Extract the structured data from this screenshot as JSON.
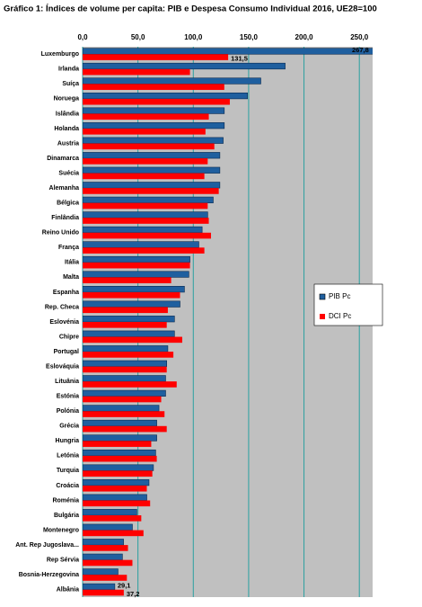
{
  "chart_data": {
    "type": "hbar",
    "title": "Gráfico 1: Índices de volume per capita: PIB e Despesa Consumo Individual 2016, UE28=100",
    "categories": [
      "Luxemburgo",
      "Irlanda",
      "Suíça",
      "Noruega",
      "Islândia",
      "Holanda",
      "Austria",
      "Dinamarca",
      "Suécia",
      "Alemanha",
      "Bélgica",
      "Finlândia",
      "Reino Unido",
      "França",
      "Itália",
      "Malta",
      "Espanha",
      "Rep. Checa",
      "Eslovénia",
      "Chipre",
      "Portugal",
      "Eslováquia",
      "Lituânia",
      "Estónia",
      "Polónia",
      "Grécia",
      "Hungria",
      "Letónia",
      "Turquia",
      "Croácia",
      "Roménia",
      "Bulgária",
      "Montenegro",
      "Ant. Rep Jugoslava...",
      "Rep Sérvia",
      "Bosnia-Herzegovina",
      "Albânia"
    ],
    "series": [
      {
        "name": "PIB Pc",
        "color": "#1f5f9f",
        "values": [
          267.8,
          183,
          161,
          149,
          128,
          128,
          127,
          124,
          124,
          124,
          118,
          113,
          108,
          105,
          97,
          96,
          92,
          88,
          83,
          83,
          77,
          76,
          75,
          75,
          69,
          67,
          67,
          66,
          64,
          60,
          58,
          49,
          45,
          37,
          36,
          32,
          29.1
        ],
        "value_labels": [
          "267,8",
          null,
          null,
          null,
          null,
          null,
          null,
          null,
          null,
          null,
          null,
          null,
          null,
          null,
          null,
          null,
          null,
          null,
          null,
          null,
          null,
          null,
          null,
          null,
          null,
          null,
          null,
          null,
          null,
          null,
          null,
          null,
          null,
          null,
          null,
          null,
          "29,1"
        ]
      },
      {
        "name": "DCI Pc",
        "color": "#ff0000",
        "values": [
          131.5,
          97,
          128,
          133,
          114,
          111,
          119,
          113,
          110,
          123,
          113,
          114,
          116,
          110,
          97,
          80,
          88,
          77,
          76,
          90,
          82,
          76,
          85,
          71,
          74,
          76,
          62,
          67,
          63,
          58,
          61,
          53,
          55,
          41,
          45,
          40,
          37.2
        ],
        "value_labels": [
          "131,5",
          null,
          null,
          null,
          null,
          null,
          null,
          null,
          null,
          null,
          null,
          null,
          null,
          null,
          null,
          null,
          null,
          null,
          null,
          null,
          null,
          null,
          null,
          null,
          null,
          null,
          null,
          null,
          null,
          null,
          null,
          null,
          null,
          null,
          null,
          null,
          "37,2"
        ]
      }
    ],
    "xlim": [
      0,
      262
    ],
    "xticks": [
      {
        "value": 0,
        "label": "0,0"
      },
      {
        "value": 50,
        "label": "50,0"
      },
      {
        "value": 100,
        "label": "100,0"
      },
      {
        "value": 150,
        "label": "150,0"
      },
      {
        "value": 200,
        "label": "200,0"
      },
      {
        "value": 250,
        "label": "250,0"
      }
    ],
    "grid": true,
    "legend": "right"
  }
}
